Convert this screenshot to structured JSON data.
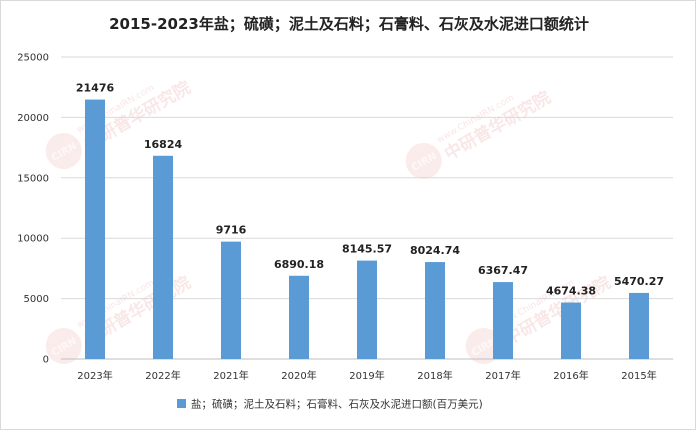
{
  "chart_data": {
    "type": "bar",
    "title": "2015-2023年盐；硫磺；泥土及石料；石膏料、石灰及水泥进口额统计",
    "categories": [
      "2023年",
      "2022年",
      "2021年",
      "2020年",
      "2019年",
      "2018年",
      "2017年",
      "2016年",
      "2015年"
    ],
    "series": [
      {
        "name": "盐；硫磺；泥土及石料；石膏料、石灰及水泥进口额(百万美元)",
        "values": [
          21476,
          16824,
          9716,
          6890.18,
          8145.57,
          8024.74,
          6367.47,
          4674.38,
          5470.27
        ],
        "labels": [
          "21476",
          "16824",
          "9716",
          "6890.18",
          "8145.57",
          "8024.74",
          "6367.47",
          "4674.38",
          "5470.27"
        ]
      }
    ],
    "ylim": [
      0,
      25000
    ],
    "yticks": [
      0,
      5000,
      10000,
      15000,
      20000,
      25000
    ],
    "xlabel": "",
    "ylabel": "",
    "grid": true,
    "legend_position": "bottom",
    "bar_color": "#5b9bd5"
  },
  "watermark": {
    "text": "中研普华研究院",
    "url_text": "www.ChinaIRN.com",
    "logo_text": "CIRN"
  }
}
